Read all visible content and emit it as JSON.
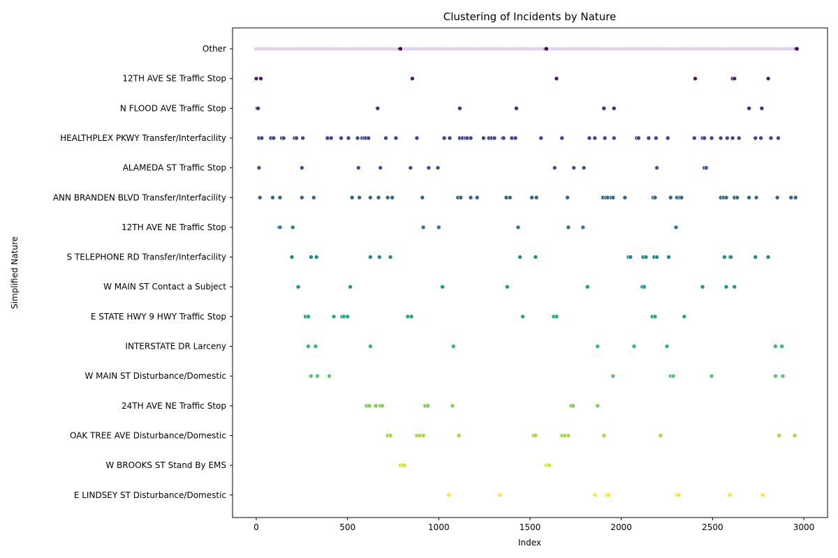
{
  "chart_data": {
    "type": "scatter",
    "title": "Clustering of Incidents by Nature",
    "xlabel": "Index",
    "ylabel": "Simplified Nature",
    "xlim": [
      -130,
      3130
    ],
    "x_ticks": [
      0,
      500,
      1000,
      1500,
      2000,
      2500,
      3000
    ],
    "grid": false,
    "legend": "none",
    "categories": [
      "Other",
      "12TH AVE SE Traffic Stop",
      "N FLOOD AVE Traffic Stop",
      "HEALTHPLEX PKWY Transfer/Interfacility",
      "ALAMEDA ST Traffic Stop",
      "ANN BRANDEN BLVD Transfer/Interfacility",
      "12TH AVE NE Traffic Stop",
      "S TELEPHONE RD Transfer/Interfacility",
      "W MAIN ST Contact a Subject",
      "E STATE HWY 9 HWY Traffic Stop",
      "INTERSTATE DR Larceny",
      "W MAIN ST Disturbance/Domestic",
      "24TH AVE NE Traffic Stop",
      "OAK TREE AVE Disturbance/Domestic",
      "W BROOKS ST Stand By EMS",
      "E LINDSEY ST Disturbance/Domestic"
    ],
    "colors": [
      "#440154",
      "#481a6c",
      "#472f7d",
      "#414487",
      "#39568c",
      "#31688e",
      "#2a788e",
      "#23888e",
      "#1f988b",
      "#22a884",
      "#35b779",
      "#54c568",
      "#7ad151",
      "#a5db36",
      "#d2e21b",
      "#fde725"
    ],
    "other_color": "#c8b8dc",
    "other_range": [
      0,
      2960
    ],
    "other_dark_points": [
      785,
      790,
      1585,
      1590,
      2957,
      2962
    ],
    "series": [
      {
        "x": [
          0,
          25,
          855,
          1645,
          2405,
          2610,
          2620,
          2805
        ]
      },
      {
        "x": [
          5,
          10,
          665,
          1115,
          1425,
          1905,
          1960,
          2700,
          2770
        ]
      },
      {
        "x": [
          15,
          30,
          80,
          95,
          140,
          150,
          210,
          220,
          255,
          390,
          410,
          465,
          505,
          555,
          580,
          590,
          600,
          615,
          710,
          765,
          880,
          1030,
          1060,
          1115,
          1130,
          1145,
          1155,
          1175,
          1245,
          1275,
          1290,
          1305,
          1350,
          1355,
          1400,
          1420,
          1560,
          1675,
          1825,
          1855,
          1910,
          1960,
          2085,
          2095,
          2150,
          2190,
          2255,
          2400,
          2445,
          2455,
          2495,
          2545,
          2580,
          2610,
          2645,
          2735,
          2765,
          2820,
          2860
        ]
      },
      {
        "x": [
          15,
          250,
          560,
          680,
          845,
          945,
          995,
          1635,
          1740,
          1795,
          2195,
          2455,
          2465
        ]
      },
      {
        "x": [
          20,
          90,
          130,
          250,
          315,
          525,
          565,
          625,
          670,
          720,
          745,
          910,
          1105,
          1120,
          1175,
          1210,
          1370,
          1390,
          1510,
          1535,
          1705,
          1900,
          1915,
          1925,
          1945,
          1955,
          2020,
          2175,
          2185,
          2270,
          2305,
          2320,
          2330,
          2545,
          2560,
          2575,
          2620,
          2635,
          2700,
          2740,
          2855,
          2930,
          2955
        ]
      },
      {
        "x": [
          125,
          130,
          200,
          915,
          1000,
          1435,
          1710,
          1790,
          2300
        ]
      },
      {
        "x": [
          195,
          300,
          330,
          625,
          675,
          735,
          1445,
          1530,
          2040,
          2050,
          2120,
          2135,
          2180,
          2195,
          2260,
          2565,
          2595,
          2600,
          2735,
          2805
        ]
      },
      {
        "x": [
          230,
          515,
          1020,
          1375,
          1815,
          2115,
          2125,
          2445,
          2575,
          2620
        ]
      },
      {
        "x": [
          270,
          285,
          425,
          470,
          480,
          500,
          830,
          850,
          1460,
          1630,
          1645,
          2170,
          2185,
          2345
        ]
      },
      {
        "x": [
          285,
          325,
          625,
          1080,
          1870,
          2070,
          2250,
          2845,
          2880
        ]
      },
      {
        "x": [
          300,
          335,
          400,
          1955,
          2270,
          2285,
          2495,
          2845,
          2885
        ]
      },
      {
        "x": [
          605,
          620,
          655,
          680,
          690,
          925,
          940,
          1075,
          1725,
          1735,
          1870
        ]
      },
      {
        "x": [
          720,
          735,
          880,
          895,
          915,
          1110,
          1520,
          1530,
          1675,
          1690,
          1710,
          1905,
          2215,
          2865,
          2950
        ]
      },
      {
        "x": [
          790,
          800,
          810,
          1590,
          1600,
          1605
        ]
      },
      {
        "x": [
          1055,
          1335,
          1855,
          1920,
          1930,
          2305,
          2315,
          2595,
          2775
        ]
      }
    ]
  }
}
